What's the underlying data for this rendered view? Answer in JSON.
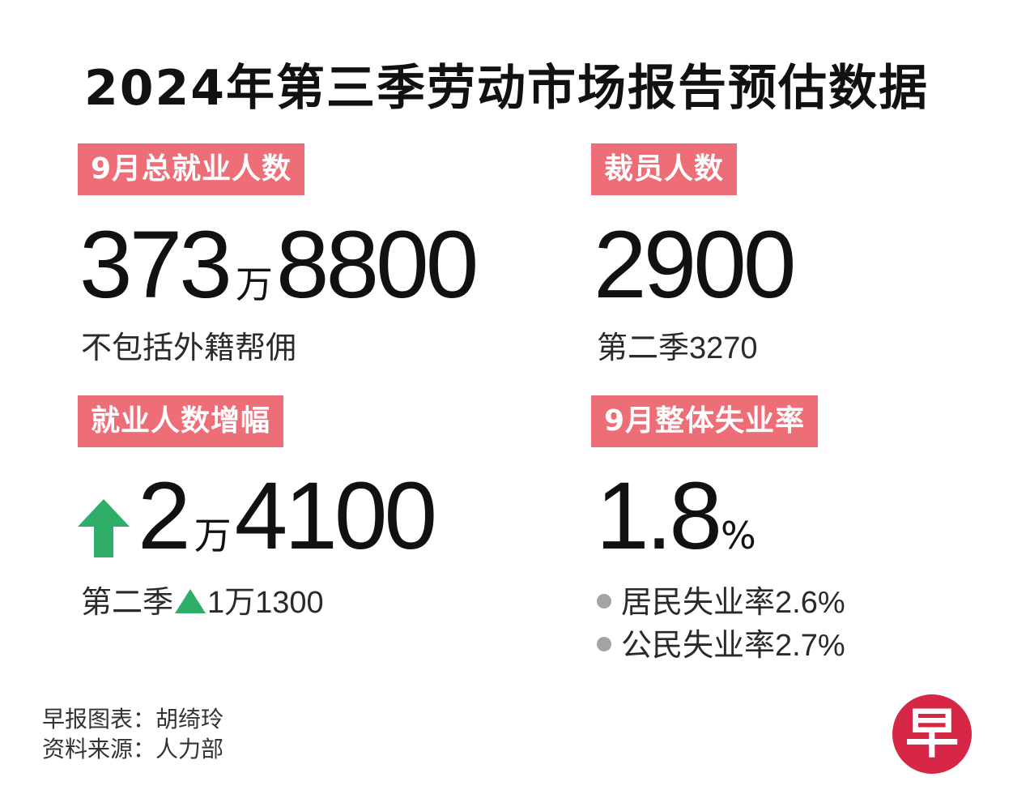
{
  "title": "2024年第三季劳动市场报告预估数据",
  "colors": {
    "tag_bg": "#ee6e78",
    "arrow_green": "#2fae6a",
    "bullet_gray": "#a3a3a3",
    "logo_red": "#d62846"
  },
  "employment": {
    "label": "9月总就业人数",
    "value_part1": "373",
    "unit": "万",
    "value_part2": "8800",
    "note": "不包括外籍帮佣"
  },
  "layoffs": {
    "label": "裁员人数",
    "value": "2900",
    "note_prefix": "第二季",
    "note_value": "3270"
  },
  "growth": {
    "label": "就业人数增幅",
    "icon": "up-arrow-icon",
    "value_part1": "2",
    "unit": "万",
    "value_part2": "4100",
    "note_prefix": "第二季",
    "note_value": "1万1300"
  },
  "unemployment": {
    "label": "9月整体失业率",
    "value": "1.8",
    "unit": "%",
    "items": [
      {
        "label": "居民失业率",
        "value": "2.6%"
      },
      {
        "label": "公民失业率",
        "value": "2.7%"
      }
    ]
  },
  "credits": {
    "chart": "早报图表：胡绮玲",
    "source": "资料来源：人力部"
  },
  "logo": {
    "char": "早",
    "icon": "zaobao-logo-icon"
  }
}
